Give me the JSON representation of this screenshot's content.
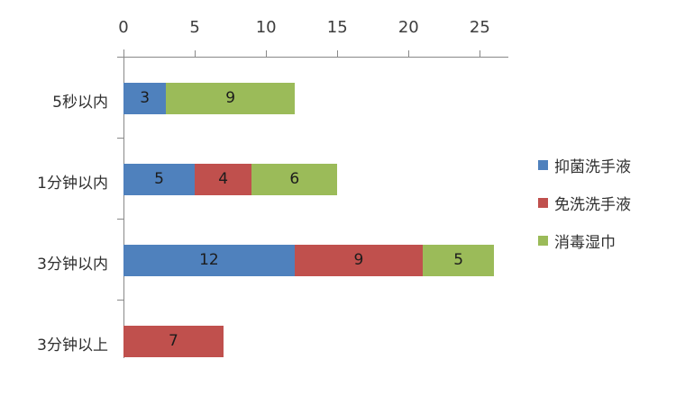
{
  "chart_data": {
    "type": "bar",
    "orientation": "horizontal",
    "stacked": true,
    "title": "",
    "categories": [
      "5秒以内",
      "1分钟以内",
      "3分钟以内",
      "3分钟以上"
    ],
    "series": [
      {
        "name": "抑菌洗手液",
        "color": "#4F81BD",
        "values": [
          3,
          5,
          12,
          0
        ]
      },
      {
        "name": "免洗洗手液",
        "color": "#C0504D",
        "values": [
          0,
          4,
          9,
          7
        ]
      },
      {
        "name": "消毒湿巾",
        "color": "#9BBB59",
        "values": [
          9,
          6,
          5,
          0
        ]
      }
    ],
    "totals": [
      12,
      15,
      26,
      7
    ],
    "value_axis": {
      "position": "top",
      "ticks": [
        0,
        5,
        10,
        15,
        20,
        25
      ],
      "range": [
        0,
        27
      ]
    },
    "category_axis": {
      "position": "left"
    },
    "legend": {
      "position": "right"
    },
    "grid": false,
    "data_labels": true,
    "background": "#FFFFFF",
    "axis_line_color": "#898989"
  }
}
